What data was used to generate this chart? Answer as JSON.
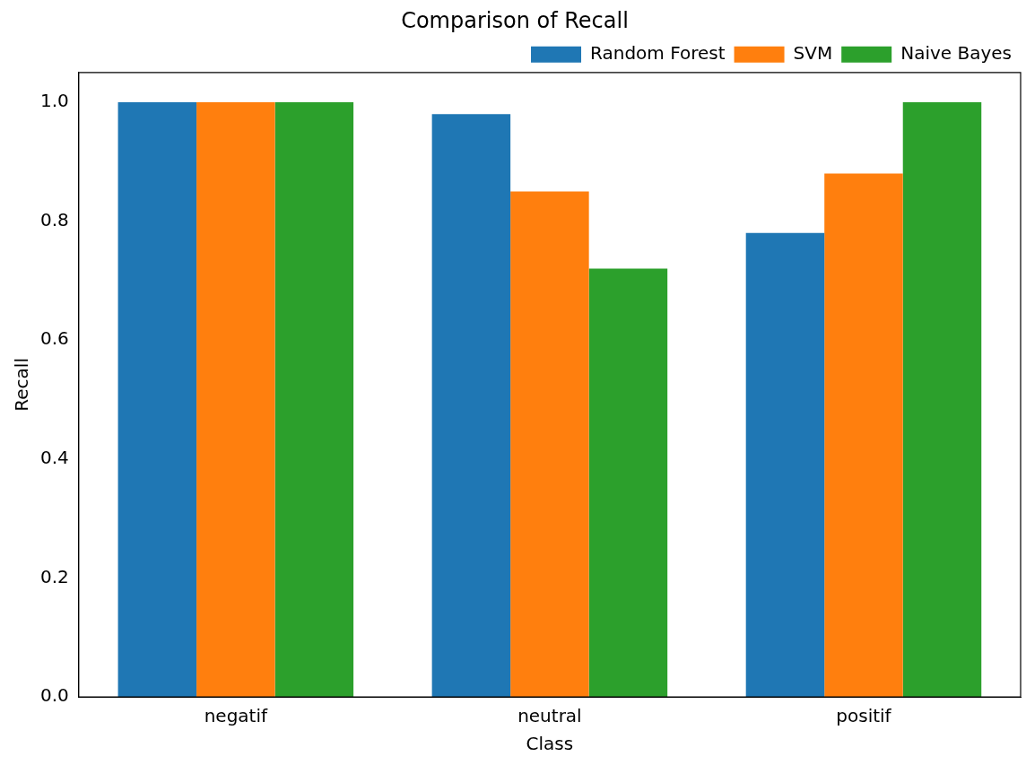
{
  "chart_data": {
    "type": "bar",
    "title": "Comparison of Recall",
    "xlabel": "Class",
    "ylabel": "Recall",
    "categories": [
      "negatif",
      "neutral",
      "positif"
    ],
    "series": [
      {
        "name": "Random Forest",
        "color": "#1f77b4",
        "values": [
          1.0,
          0.98,
          0.78
        ]
      },
      {
        "name": "SVM",
        "color": "#ff7f0e",
        "values": [
          1.0,
          0.85,
          0.88
        ]
      },
      {
        "name": "Naive Bayes",
        "color": "#2ca02c",
        "values": [
          1.0,
          0.72,
          1.0
        ]
      }
    ],
    "ylim": [
      0,
      1.05
    ],
    "yticks": [
      {
        "value": 0,
        "label": "0.0"
      },
      {
        "value": 0.2,
        "label": "0.2"
      },
      {
        "value": 0.4,
        "label": "0.4"
      },
      {
        "value": 0.6,
        "label": "0.6"
      },
      {
        "value": 0.8,
        "label": "0.8"
      },
      {
        "value": 1,
        "label": "1.0"
      }
    ],
    "grid": false,
    "legend": "top right"
  }
}
